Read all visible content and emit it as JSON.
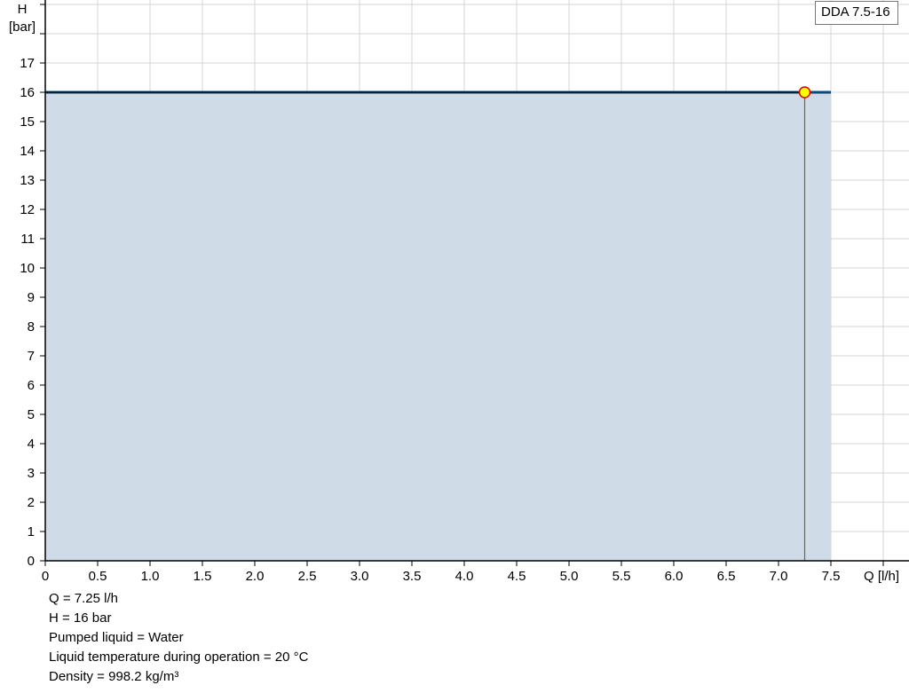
{
  "chart_data": {
    "type": "line",
    "title": "",
    "xlabel": "Q [l/h]",
    "ylabel_line1": "H",
    "ylabel_line2": "[bar]",
    "xlim": [
      0,
      8.0
    ],
    "ylim": [
      0,
      19
    ],
    "grid": true,
    "x_ticks": [
      "0",
      "0.5",
      "1.0",
      "1.5",
      "2.0",
      "2.5",
      "3.0",
      "3.5",
      "4.0",
      "4.5",
      "5.0",
      "5.5",
      "6.0",
      "6.5",
      "7.0",
      "7.5"
    ],
    "y_ticks": [
      "0",
      "1",
      "2",
      "3",
      "4",
      "5",
      "6",
      "7",
      "8",
      "9",
      "10",
      "11",
      "12",
      "13",
      "14",
      "15",
      "16",
      "17"
    ],
    "legend": {
      "label": "DDA 7.5-16",
      "placement": "top-right"
    },
    "series": [
      {
        "name": "DDA 7.5-16",
        "x": [
          0,
          7.5
        ],
        "y": [
          16,
          16
        ],
        "color": "#0a4a7e",
        "fill": "#cfdbe6"
      }
    ],
    "duty_point": {
      "x": 7.25,
      "y": 16,
      "color": "#ffff00",
      "stroke": "#e00000"
    }
  },
  "info": {
    "q": "Q = 7.25 l/h",
    "h": "H = 16 bar",
    "liquid": "Pumped liquid = Water",
    "temp": "Liquid temperature during operation = 20 °C",
    "density": "Density = 998.2 kg/m³"
  }
}
